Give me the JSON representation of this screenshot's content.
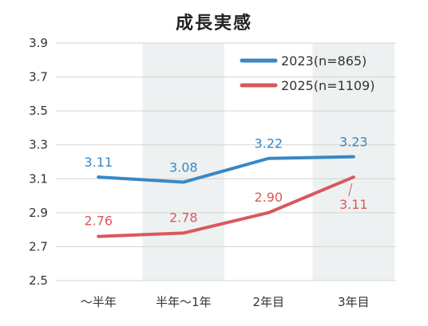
{
  "chart_data": {
    "type": "line",
    "title": "成長実感",
    "categories": [
      "〜半年",
      "半年〜1年",
      "2年目",
      "3年目"
    ],
    "ylim": [
      2.5,
      3.9
    ],
    "yticks": [
      2.5,
      2.7,
      2.9,
      3.1,
      3.3,
      3.5,
      3.7,
      3.9
    ],
    "ytick_labels": [
      "2.5",
      "2.7",
      "2.9",
      "3.1",
      "3.3",
      "3.5",
      "3.7",
      "3.9"
    ],
    "legend_position": "top-right",
    "series": [
      {
        "name": "2023(n=865)",
        "color": "#3a87c4",
        "values": [
          3.11,
          3.08,
          3.22,
          3.23
        ],
        "labels": [
          "3.11",
          "3.08",
          "3.22",
          "3.23"
        ]
      },
      {
        "name": "2025(n=1109)",
        "color": "#d9585c",
        "values": [
          2.76,
          2.78,
          2.9,
          3.11
        ],
        "labels": [
          "2.76",
          "2.78",
          "2.90",
          "3.11"
        ]
      }
    ],
    "shaded_category_bands": [
      "半年〜1年",
      "3年目"
    ],
    "band_color": "#eef1f1",
    "grid": true
  }
}
